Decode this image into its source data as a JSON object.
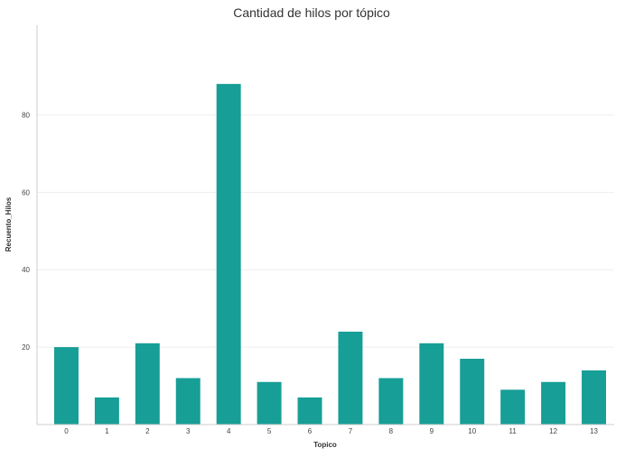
{
  "chart_data": {
    "type": "bar",
    "title": "Cantidad de hilos por tópico",
    "xlabel": "Topico",
    "ylabel": "Recuento_Hilos",
    "categories": [
      "0",
      "1",
      "2",
      "3",
      "4",
      "5",
      "6",
      "7",
      "8",
      "9",
      "10",
      "11",
      "12",
      "13"
    ],
    "values": [
      20,
      7,
      21,
      12,
      88,
      11,
      7,
      24,
      12,
      21,
      17,
      9,
      11,
      14
    ],
    "ylim": [
      0,
      102
    ],
    "yticks": [
      20,
      40,
      60,
      80
    ],
    "grid": true,
    "bar_color": "#179e96",
    "gridline_color": "#eeeeee",
    "axis_color": "#cccccc"
  }
}
